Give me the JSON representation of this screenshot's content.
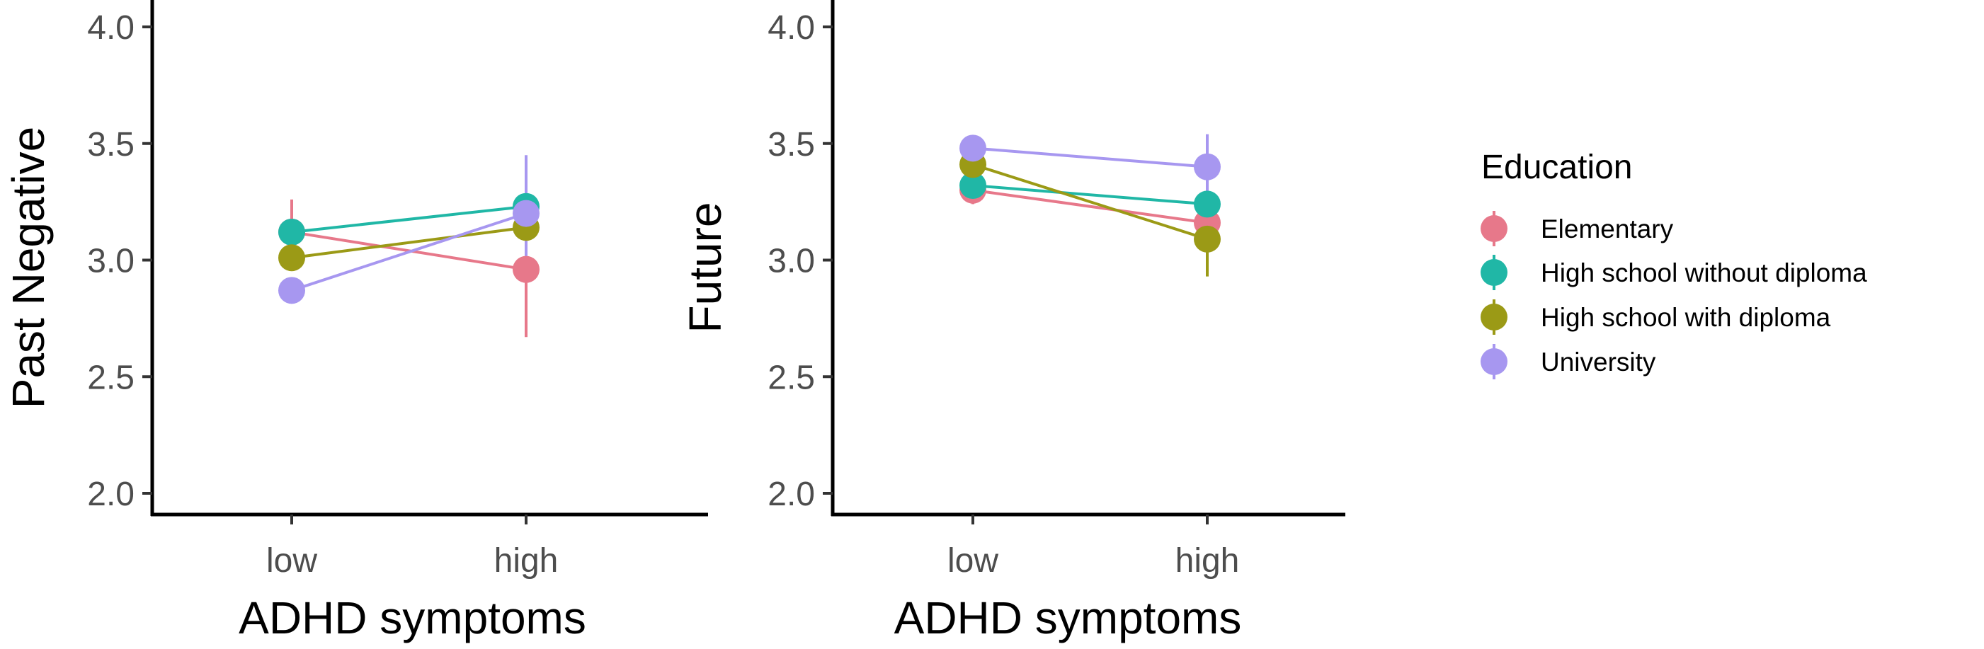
{
  "chart_data": [
    {
      "type": "line",
      "xlabel": "ADHD symptoms",
      "ylabel": "Past Negative",
      "categories": [
        "low",
        "high"
      ],
      "ylim": [
        2.0,
        4.0
      ],
      "yticks": [
        "2.0",
        "2.5",
        "3.0",
        "3.5",
        "4.0"
      ],
      "grid": false,
      "series": [
        {
          "name": "Elementary",
          "values": [
            3.12,
            2.96
          ],
          "error": [
            [
              2.98,
              3.26
            ],
            [
              2.67,
              3.25
            ]
          ]
        },
        {
          "name": "High school without diploma",
          "values": [
            3.12,
            3.23
          ],
          "error": [
            [
              3.08,
              3.16
            ],
            [
              3.17,
              3.29
            ]
          ]
        },
        {
          "name": "High school with diploma",
          "values": [
            3.01,
            3.14
          ],
          "error": [
            [
              2.97,
              3.05
            ],
            [
              3.09,
              3.19
            ]
          ]
        },
        {
          "name": "University",
          "values": [
            2.87,
            3.2
          ],
          "error": [
            [
              2.83,
              2.91
            ],
            [
              2.95,
              3.45
            ]
          ]
        }
      ]
    },
    {
      "type": "line",
      "xlabel": "ADHD symptoms",
      "ylabel": "Future",
      "categories": [
        "low",
        "high"
      ],
      "ylim": [
        2.0,
        4.0
      ],
      "yticks": [
        "2.0",
        "2.5",
        "3.0",
        "3.5",
        "4.0"
      ],
      "grid": false,
      "series": [
        {
          "name": "Elementary",
          "values": [
            3.3,
            3.16
          ],
          "error": [
            [
              3.24,
              3.36
            ],
            [
              3.1,
              3.22
            ]
          ]
        },
        {
          "name": "High school without diploma",
          "values": [
            3.32,
            3.24
          ],
          "error": [
            [
              3.28,
              3.36
            ],
            [
              3.19,
              3.29
            ]
          ]
        },
        {
          "name": "High school with diploma",
          "values": [
            3.41,
            3.09
          ],
          "error": [
            [
              3.37,
              3.45
            ],
            [
              2.93,
              3.22
            ]
          ]
        },
        {
          "name": "University",
          "values": [
            3.48,
            3.4
          ],
          "error": [
            [
              3.44,
              3.52
            ],
            [
              3.28,
              3.54
            ]
          ]
        }
      ]
    }
  ],
  "legend": {
    "title": "Education",
    "position": "right",
    "items": [
      {
        "label": "Elementary",
        "color": "#E7788A"
      },
      {
        "label": "High school without diploma",
        "color": "#20B7A6"
      },
      {
        "label": "High school with diploma",
        "color": "#9B9A16"
      },
      {
        "label": "University",
        "color": "#A797F0"
      }
    ]
  },
  "colors": [
    "#E7788A",
    "#20B7A6",
    "#9B9A16",
    "#A797F0"
  ]
}
